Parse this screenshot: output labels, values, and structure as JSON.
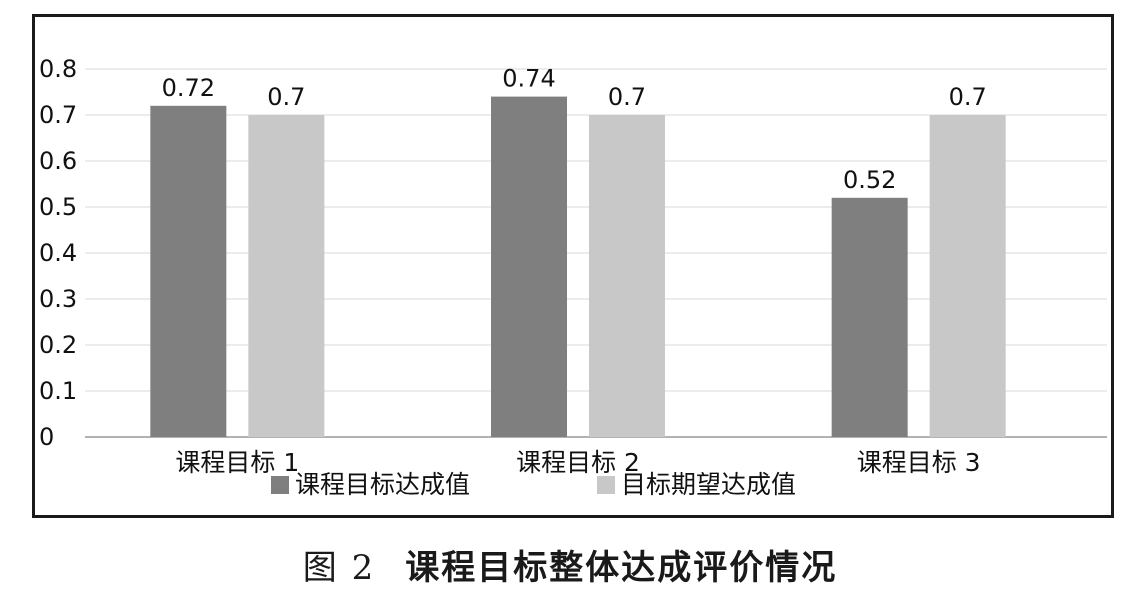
{
  "caption": {
    "figure_no": "图 2",
    "title": "课程目标整体达成评价情况"
  },
  "chart_data": {
    "type": "bar",
    "categories": [
      "课程目标 1",
      "课程目标 2",
      "课程目标 3"
    ],
    "series": [
      {
        "name": "课程目标达成值",
        "values": [
          0.72,
          0.74,
          0.52
        ],
        "color": "#7f7f7f"
      },
      {
        "name": "目标期望达成值",
        "values": [
          0.7,
          0.7,
          0.7
        ],
        "color": "#c8c8c8"
      }
    ],
    "data_labels": [
      [
        "0.72",
        "0.74",
        "0.52"
      ],
      [
        "0.7",
        "0.7",
        "0.7"
      ]
    ],
    "yticks": [
      "0",
      "0.1",
      "0.2",
      "0.3",
      "0.4",
      "0.5",
      "0.6",
      "0.7",
      "0.8"
    ],
    "ylim": [
      0,
      0.8
    ],
    "grid": true,
    "legend_position": "bottom"
  }
}
